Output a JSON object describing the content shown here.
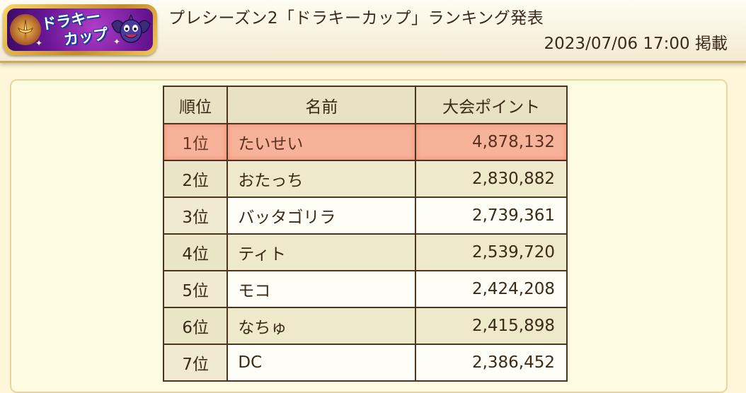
{
  "header": {
    "logo_text_line1": "ドラキー",
    "logo_text_line2": "カップ",
    "title": "プレシーズン2「ドラキーカップ」ランキング発表",
    "posted": "2023/07/06 17:00 掲載"
  },
  "table": {
    "headers": {
      "rank": "順位",
      "name": "名前",
      "points": "大会ポイント"
    },
    "rows": [
      {
        "rank": "1位",
        "name": "たいせい",
        "points": "4,878,132"
      },
      {
        "rank": "2位",
        "name": "おたっち",
        "points": "2,830,882"
      },
      {
        "rank": "3位",
        "name": "バッタゴリラ",
        "points": "2,739,361"
      },
      {
        "rank": "4位",
        "name": "ティト",
        "points": "2,539,720"
      },
      {
        "rank": "5位",
        "name": "モコ",
        "points": "2,424,208"
      },
      {
        "rank": "6位",
        "name": "なちゅ",
        "points": "2,415,898"
      },
      {
        "rank": "7位",
        "name": "DC",
        "points": "2,386,452"
      }
    ]
  },
  "colors": {
    "background": "#fdf6d8",
    "highlight_row": "#f7b39a",
    "table_border": "#4a3620",
    "header_cell": "#e9e1c3"
  },
  "icons": {
    "logo_emblem": "sword-emblem-icon",
    "logo_mascot": "drakee-bat-icon"
  }
}
